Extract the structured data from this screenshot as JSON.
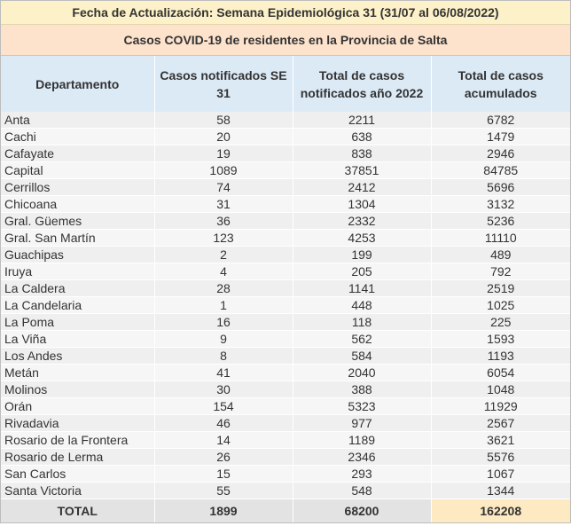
{
  "header": {
    "update_line": "Fecha de Actualización: Semana Epidemiológica 31 (31/07 al 06/08/2022)",
    "title": "Casos COVID-19 de residentes en la Provincia de Salta"
  },
  "table": {
    "columns": [
      "Departamento",
      "Casos notificados SE 31",
      "Total de casos notificados año 2022",
      "Total de casos acumulados"
    ],
    "rows": [
      {
        "dept": "Anta",
        "se": "58",
        "year": "2211",
        "acum": "6782"
      },
      {
        "dept": "Cachi",
        "se": "20",
        "year": "638",
        "acum": "1479"
      },
      {
        "dept": "Cafayate",
        "se": "19",
        "year": "838",
        "acum": "2946"
      },
      {
        "dept": "Capital",
        "se": "1089",
        "year": "37851",
        "acum": "84785"
      },
      {
        "dept": "Cerrillos",
        "se": "74",
        "year": "2412",
        "acum": "5696"
      },
      {
        "dept": "Chicoana",
        "se": "31",
        "year": "1304",
        "acum": "3132"
      },
      {
        "dept": "Gral. Güemes",
        "se": "36",
        "year": "2332",
        "acum": "5236"
      },
      {
        "dept": "Gral. San Martín",
        "se": "123",
        "year": "4253",
        "acum": "11110"
      },
      {
        "dept": "Guachipas",
        "se": "2",
        "year": "199",
        "acum": "489"
      },
      {
        "dept": "Iruya",
        "se": "4",
        "year": "205",
        "acum": "792"
      },
      {
        "dept": "La Caldera",
        "se": "28",
        "year": "1141",
        "acum": "2519"
      },
      {
        "dept": "La Candelaria",
        "se": "1",
        "year": "448",
        "acum": "1025"
      },
      {
        "dept": "La Poma",
        "se": "16",
        "year": "118",
        "acum": "225"
      },
      {
        "dept": "La Viña",
        "se": "9",
        "year": "562",
        "acum": "1593"
      },
      {
        "dept": "Los Andes",
        "se": "8",
        "year": "584",
        "acum": "1193"
      },
      {
        "dept": "Metán",
        "se": "41",
        "year": "2040",
        "acum": "6054"
      },
      {
        "dept": "Molinos",
        "se": "30",
        "year": "388",
        "acum": "1048"
      },
      {
        "dept": "Orán",
        "se": "154",
        "year": "5323",
        "acum": "11929"
      },
      {
        "dept": "Rivadavia",
        "se": "46",
        "year": "977",
        "acum": "2567"
      },
      {
        "dept": "Rosario de la Frontera",
        "se": "14",
        "year": "1189",
        "acum": "3621"
      },
      {
        "dept": "Rosario de Lerma",
        "se": "26",
        "year": "2346",
        "acum": "5576"
      },
      {
        "dept": "San Carlos",
        "se": "15",
        "year": "293",
        "acum": "1067"
      },
      {
        "dept": "Santa Victoria",
        "se": "55",
        "year": "548",
        "acum": "1344"
      }
    ],
    "total": {
      "label": "TOTAL",
      "se": "1899",
      "year": "68200",
      "acum": "162208"
    }
  },
  "colors": {
    "banner_update": "#fdf1c9",
    "banner_title": "#fde2cc",
    "header_bg": "#dceaf6",
    "grand_total_bg": "#fde9c2"
  }
}
